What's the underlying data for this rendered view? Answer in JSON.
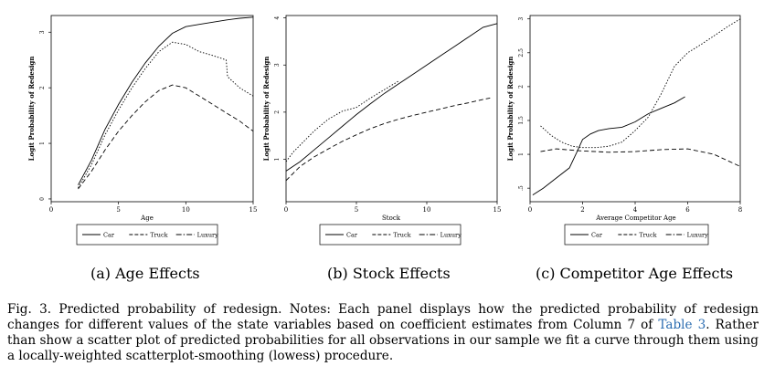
{
  "chart_data": [
    {
      "type": "line",
      "subcaption": "(a) Age Effects",
      "xlabel": "Age",
      "ylabel": "Logit Probability of Redesign",
      "xlim": [
        0,
        15
      ],
      "ylim": [
        -0.05,
        3.3
      ],
      "xticks": [
        "0",
        "5",
        "10",
        "15"
      ],
      "yticks": [
        "0",
        "1",
        "2",
        "3"
      ],
      "series": [
        {
          "name": "Car",
          "dash": "solid",
          "x": [
            2,
            3,
            4,
            5,
            6,
            7,
            8,
            9,
            10,
            11,
            12,
            13,
            14,
            15
          ],
          "y": [
            0.25,
            0.7,
            1.25,
            1.7,
            2.1,
            2.45,
            2.75,
            2.98,
            3.1,
            3.14,
            3.18,
            3.22,
            3.25,
            3.27
          ]
        },
        {
          "name": "Truck",
          "dash": "dash",
          "x": [
            2,
            3,
            4,
            5,
            6,
            7,
            8,
            9,
            10,
            11,
            12,
            13,
            14,
            15
          ],
          "y": [
            0.18,
            0.5,
            0.88,
            1.22,
            1.5,
            1.75,
            1.95,
            2.05,
            2.0,
            1.85,
            1.7,
            1.55,
            1.4,
            1.22
          ]
        },
        {
          "name": "Luxury",
          "dash": "dot",
          "x": [
            2,
            3,
            4,
            5,
            6,
            7,
            8,
            9,
            10,
            11,
            12,
            13,
            13.1,
            14,
            15
          ],
          "y": [
            0.2,
            0.62,
            1.15,
            1.6,
            2.0,
            2.35,
            2.65,
            2.82,
            2.78,
            2.65,
            2.58,
            2.5,
            2.2,
            2.0,
            1.85
          ]
        }
      ]
    },
    {
      "type": "line",
      "subcaption": "(b) Stock Effects",
      "xlabel": "Stock",
      "ylabel": "Logit Probability of Redesign",
      "xlim": [
        0,
        15
      ],
      "ylim": [
        0.1,
        4.05
      ],
      "xticks": [
        "0",
        "5",
        "10",
        "15"
      ],
      "yticks": [
        "1",
        "2",
        "3",
        "4"
      ],
      "series": [
        {
          "name": "Car",
          "dash": "solid",
          "x": [
            0,
            1,
            2,
            3,
            4,
            5,
            6,
            7,
            8,
            9,
            10,
            11,
            12,
            13,
            14,
            15
          ],
          "y": [
            0.75,
            0.95,
            1.2,
            1.45,
            1.7,
            1.95,
            2.18,
            2.4,
            2.6,
            2.8,
            3.0,
            3.2,
            3.4,
            3.6,
            3.8,
            3.88
          ]
        },
        {
          "name": "Truck",
          "dash": "dash",
          "x": [
            0,
            1,
            2,
            3,
            4,
            5,
            6,
            7,
            8,
            9,
            10,
            11,
            12,
            13,
            14,
            14.5
          ],
          "y": [
            0.55,
            0.85,
            1.05,
            1.22,
            1.38,
            1.52,
            1.65,
            1.76,
            1.85,
            1.93,
            2.0,
            2.07,
            2.14,
            2.2,
            2.27,
            2.3
          ]
        },
        {
          "name": "Luxury",
          "dash": "dot",
          "x": [
            0,
            0.5,
            1,
            2,
            3,
            4,
            5,
            6,
            7,
            8
          ],
          "y": [
            0.95,
            1.15,
            1.3,
            1.6,
            1.85,
            2.02,
            2.1,
            2.3,
            2.48,
            2.66
          ]
        }
      ]
    },
    {
      "type": "line",
      "subcaption": "(c) Competitor Age Effects",
      "xlabel": "Average Competitor Age",
      "ylabel": "Logit Probability of Redesign",
      "xlim": [
        0,
        8
      ],
      "ylim": [
        0.3,
        3.05
      ],
      "xticks": [
        "0",
        "2",
        "4",
        "6",
        "8"
      ],
      "yticks": [
        ".5",
        "1",
        "1.5",
        "2",
        "2.5",
        "3"
      ],
      "series": [
        {
          "name": "Car",
          "dash": "solid",
          "x": [
            0.1,
            0.5,
            1.0,
            1.5,
            1.8,
            2.0,
            2.3,
            2.6,
            3.0,
            3.5,
            4.0,
            4.5,
            5.0,
            5.5,
            5.9
          ],
          "y": [
            0.4,
            0.5,
            0.65,
            0.8,
            1.05,
            1.22,
            1.3,
            1.35,
            1.38,
            1.4,
            1.48,
            1.6,
            1.68,
            1.76,
            1.85
          ]
        },
        {
          "name": "Truck",
          "dash": "dash",
          "x": [
            0.4,
            1.0,
            2.0,
            3.0,
            4.0,
            5.0,
            6.0,
            7.0,
            8.0
          ],
          "y": [
            1.04,
            1.08,
            1.05,
            1.03,
            1.04,
            1.07,
            1.08,
            1.0,
            0.82
          ]
        },
        {
          "name": "Luxury",
          "dash": "dot",
          "x": [
            0.4,
            0.8,
            1.2,
            1.6,
            2.0,
            2.5,
            3.0,
            3.5,
            4.0,
            4.5,
            5.0,
            5.5,
            6.0,
            6.5,
            7.0,
            7.5,
            8.0
          ],
          "y": [
            1.42,
            1.28,
            1.18,
            1.12,
            1.1,
            1.1,
            1.12,
            1.18,
            1.35,
            1.55,
            1.9,
            2.3,
            2.5,
            2.62,
            2.75,
            2.88,
            3.0
          ]
        }
      ]
    }
  ],
  "subcaptions": [
    "(a) Age Effects",
    "(b) Stock Effects",
    "(c) Competitor Age Effects"
  ],
  "caption": {
    "label": "Fig. 3.",
    "text_before": "Predicted probability of redesign. Notes: Each panel displays how the predicted probability of redesign changes for different values of the state variables based on coefficient estimates from Column 7 of ",
    "ref": "Table 3",
    "text_after": ". Rather than show a scatter plot of predicted probabilities for all observations in our sample we fit a curve through them using a locally-weighted scatterplot-smoothing (lowess) procedure."
  }
}
